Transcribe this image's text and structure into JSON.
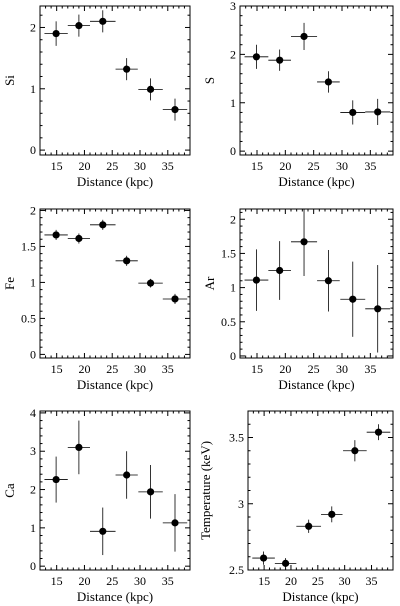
{
  "chart_data": [
    {
      "type": "scatter",
      "xlabel": "Distance (kpc)",
      "ylabel": "Si",
      "xlim": [
        12,
        39
      ],
      "ylim": [
        -0.08,
        2.35
      ],
      "xticks": [
        15,
        20,
        25,
        30,
        35
      ],
      "yticks": [
        0,
        1,
        2
      ],
      "grid": false,
      "points": [
        {
          "x": 14.9,
          "xerr": 2.1,
          "y": 1.9,
          "yerr": 0.2
        },
        {
          "x": 19.0,
          "xerr": 2.0,
          "y": 2.03,
          "yerr": 0.18
        },
        {
          "x": 23.3,
          "xerr": 2.3,
          "y": 2.1,
          "yerr": 0.18
        },
        {
          "x": 27.6,
          "xerr": 2.0,
          "y": 1.32,
          "yerr": 0.18
        },
        {
          "x": 31.9,
          "xerr": 2.2,
          "y": 0.99,
          "yerr": 0.18
        },
        {
          "x": 36.3,
          "xerr": 2.2,
          "y": 0.66,
          "yerr": 0.18
        }
      ]
    },
    {
      "type": "scatter",
      "xlabel": "Distance (kpc)",
      "ylabel": "S",
      "xlim": [
        12,
        39
      ],
      "ylim": [
        -0.08,
        3.0
      ],
      "xticks": [
        15,
        20,
        25,
        30,
        35
      ],
      "yticks": [
        0,
        1,
        2,
        3
      ],
      "grid": false,
      "points": [
        {
          "x": 14.9,
          "xerr": 2.1,
          "y": 1.95,
          "yerr": 0.25
        },
        {
          "x": 19.0,
          "xerr": 2.0,
          "y": 1.88,
          "yerr": 0.22
        },
        {
          "x": 23.3,
          "xerr": 2.3,
          "y": 2.37,
          "yerr": 0.28
        },
        {
          "x": 27.6,
          "xerr": 2.0,
          "y": 1.43,
          "yerr": 0.22
        },
        {
          "x": 31.9,
          "xerr": 2.2,
          "y": 0.8,
          "yerr": 0.25
        },
        {
          "x": 36.3,
          "xerr": 2.2,
          "y": 0.81,
          "yerr": 0.27
        }
      ]
    },
    {
      "type": "scatter",
      "xlabel": "Distance (kpc)",
      "ylabel": "Fe",
      "xlim": [
        12,
        39
      ],
      "ylim": [
        -0.05,
        2.02
      ],
      "xticks": [
        15,
        20,
        25,
        30,
        35
      ],
      "yticks": [
        0,
        0.5,
        1,
        1.5,
        2
      ],
      "ytick_labels": [
        "0",
        "0.5",
        "1",
        "1.5",
        "2"
      ],
      "grid": false,
      "points": [
        {
          "x": 14.9,
          "xerr": 2.1,
          "y": 1.66,
          "yerr": 0.07
        },
        {
          "x": 19.0,
          "xerr": 2.0,
          "y": 1.61,
          "yerr": 0.07
        },
        {
          "x": 23.3,
          "xerr": 2.3,
          "y": 1.8,
          "yerr": 0.07
        },
        {
          "x": 27.6,
          "xerr": 2.0,
          "y": 1.3,
          "yerr": 0.07
        },
        {
          "x": 31.9,
          "xerr": 2.2,
          "y": 0.99,
          "yerr": 0.06
        },
        {
          "x": 36.3,
          "xerr": 2.2,
          "y": 0.77,
          "yerr": 0.07
        }
      ]
    },
    {
      "type": "scatter",
      "xlabel": "Distance (kpc)",
      "ylabel": "Ar",
      "xlim": [
        12,
        39
      ],
      "ylim": [
        -0.03,
        2.15
      ],
      "xticks": [
        15,
        20,
        25,
        30,
        35
      ],
      "yticks": [
        0,
        0.5,
        1,
        1.5,
        2
      ],
      "ytick_labels": [
        "0",
        "0.5",
        "1",
        "1.5",
        "2"
      ],
      "grid": false,
      "points": [
        {
          "x": 14.9,
          "xerr": 2.1,
          "y": 1.11,
          "yerr": 0.45
        },
        {
          "x": 19.0,
          "xerr": 2.0,
          "y": 1.25,
          "yerr": 0.43
        },
        {
          "x": 23.3,
          "xerr": 2.3,
          "y": 1.67,
          "yerr": 0.5
        },
        {
          "x": 27.6,
          "xerr": 2.0,
          "y": 1.1,
          "yerr": 0.45
        },
        {
          "x": 31.9,
          "xerr": 2.2,
          "y": 0.83,
          "yerr": 0.55
        },
        {
          "x": 36.3,
          "xerr": 2.2,
          "y": 0.69,
          "yerr": 0.64
        }
      ]
    },
    {
      "type": "scatter",
      "xlabel": "Distance (kpc)",
      "ylabel": "Ca",
      "xlim": [
        12,
        39
      ],
      "ylim": [
        -0.1,
        4.05
      ],
      "xticks": [
        15,
        20,
        25,
        30,
        35
      ],
      "yticks": [
        0,
        1,
        2,
        3,
        4
      ],
      "grid": false,
      "points": [
        {
          "x": 14.9,
          "xerr": 2.1,
          "y": 2.26,
          "yerr": 0.6
        },
        {
          "x": 19.0,
          "xerr": 2.0,
          "y": 3.1,
          "yerr": 0.7
        },
        {
          "x": 23.3,
          "xerr": 2.3,
          "y": 0.91,
          "yerr": 0.62
        },
        {
          "x": 27.6,
          "xerr": 2.0,
          "y": 2.38,
          "yerr": 0.62
        },
        {
          "x": 31.9,
          "xerr": 2.2,
          "y": 1.94,
          "yerr": 0.7
        },
        {
          "x": 36.3,
          "xerr": 2.2,
          "y": 1.13,
          "yerr": 0.75
        }
      ]
    },
    {
      "type": "scatter",
      "xlabel": "Distance (kpc)",
      "ylabel": "Temperature (keV)",
      "xlim": [
        12,
        39
      ],
      "ylim": [
        2.5,
        3.7
      ],
      "xticks": [
        15,
        20,
        25,
        30,
        35
      ],
      "yticks": [
        2.5,
        3,
        3.5
      ],
      "ytick_labels": [
        "2.5",
        "3",
        "3.5"
      ],
      "grid": false,
      "points": [
        {
          "x": 14.9,
          "xerr": 2.1,
          "y": 2.59,
          "yerr": 0.05
        },
        {
          "x": 19.0,
          "xerr": 2.0,
          "y": 2.55,
          "yerr": 0.04
        },
        {
          "x": 23.3,
          "xerr": 2.3,
          "y": 2.83,
          "yerr": 0.05
        },
        {
          "x": 27.6,
          "xerr": 2.0,
          "y": 2.92,
          "yerr": 0.06
        },
        {
          "x": 31.9,
          "xerr": 2.2,
          "y": 3.4,
          "yerr": 0.08
        },
        {
          "x": 36.3,
          "xerr": 2.2,
          "y": 3.54,
          "yerr": 0.06
        }
      ]
    }
  ]
}
